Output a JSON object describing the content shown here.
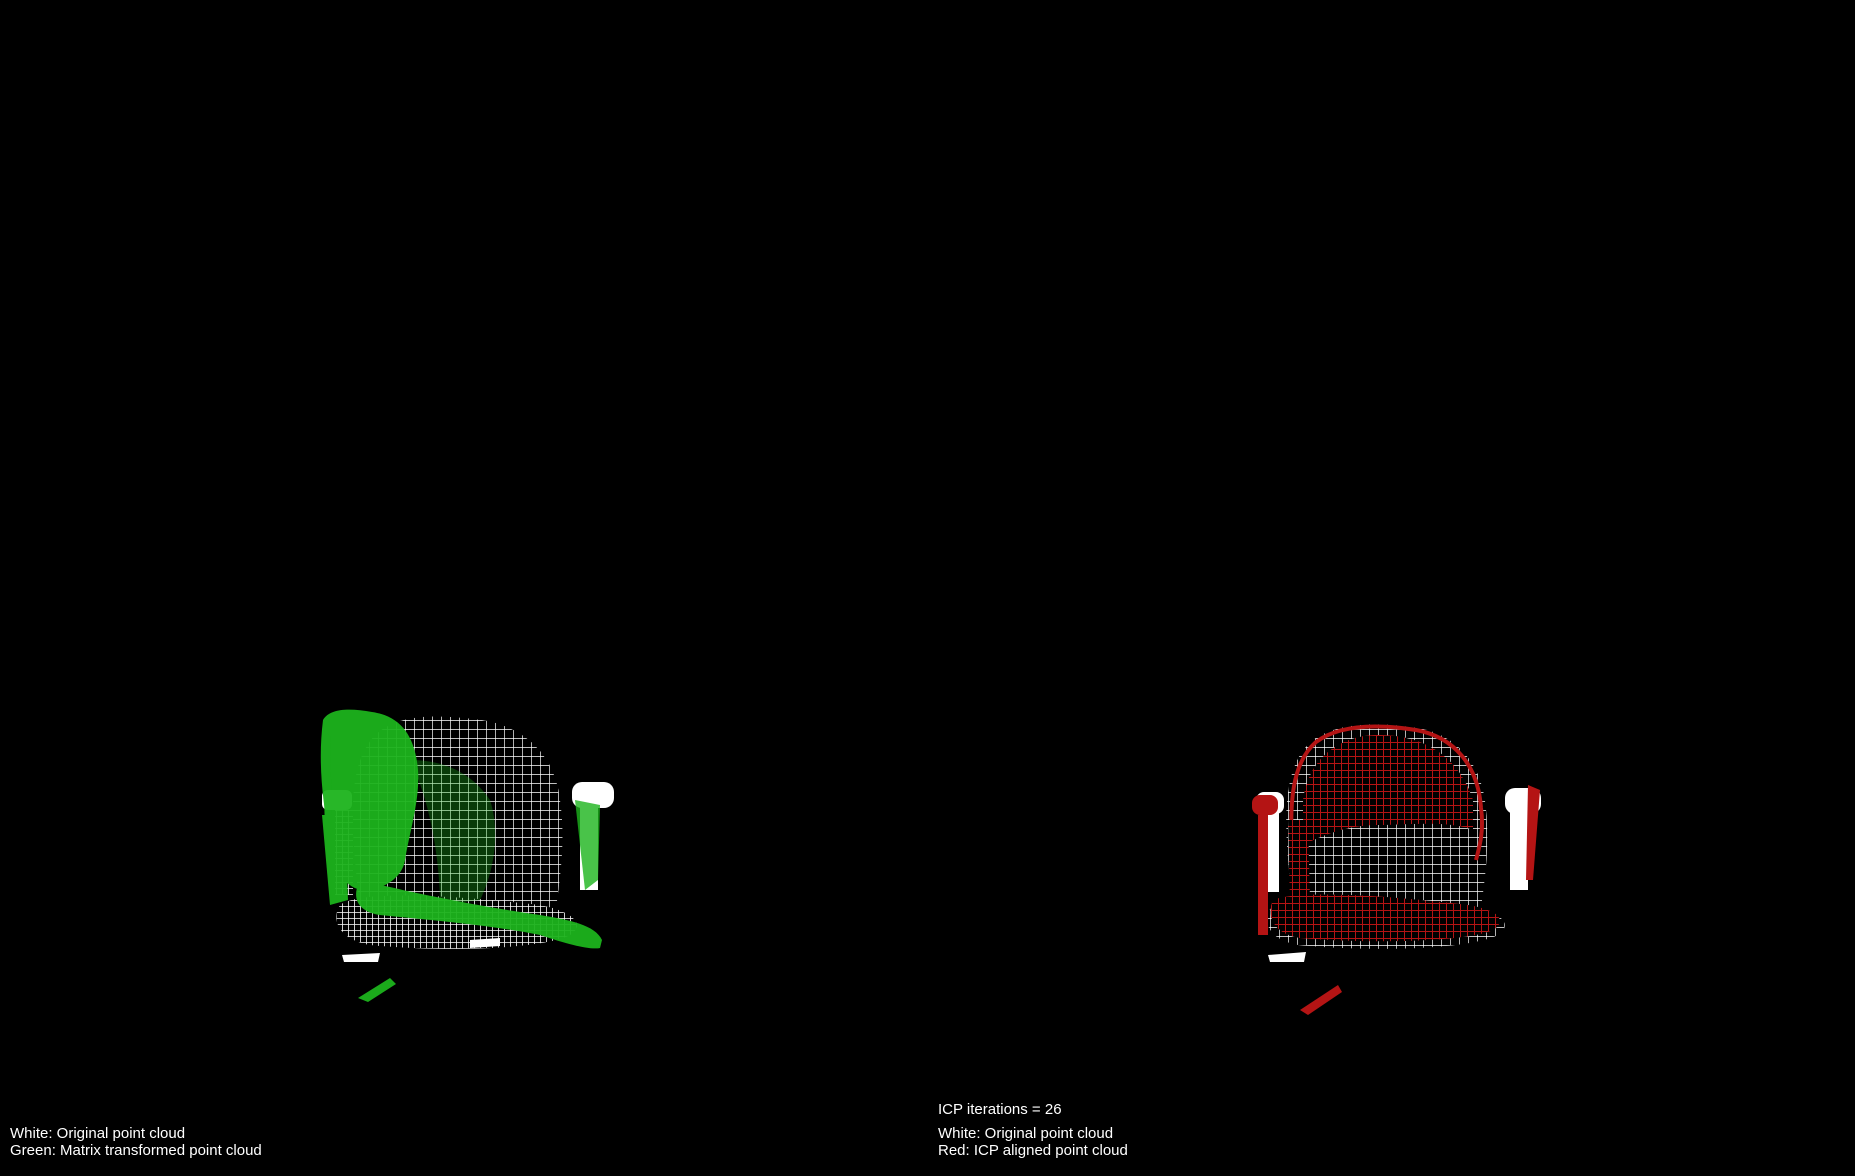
{
  "viewer": {
    "background_color": "#000000",
    "left_viewport": {
      "legend_white": "White: Original point cloud",
      "legend_transformed": "Green: Matrix transformed point cloud",
      "original_color": "#ffffff",
      "transformed_color": "#1db41d"
    },
    "right_viewport": {
      "iterations_text": "ICP iterations = 26",
      "legend_white": "White: Original point cloud",
      "legend_aligned": "Red: ICP aligned point cloud",
      "original_color": "#ffffff",
      "aligned_color": "#b41414"
    }
  }
}
